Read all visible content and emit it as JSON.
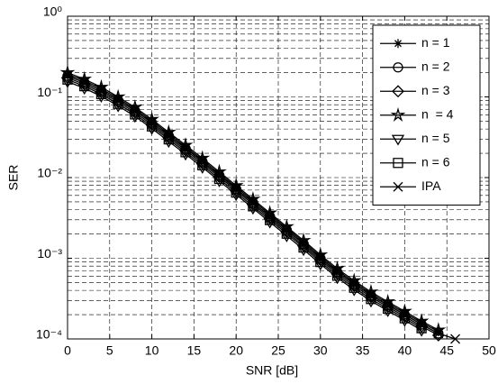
{
  "chart_data": {
    "type": "line",
    "log_y": true,
    "grid": true,
    "minor_grid": true,
    "legend": "upper right",
    "xlabel": "SNR [dB]",
    "ylabel": "SER",
    "x": [
      0,
      2,
      4,
      6,
      8,
      10,
      12,
      14,
      16,
      18,
      20,
      22,
      24,
      26,
      28,
      30,
      32,
      34,
      36,
      38,
      40,
      42,
      44,
      46
    ],
    "xlim": [
      0,
      50
    ],
    "xticks": [
      0,
      5,
      10,
      15,
      20,
      25,
      30,
      35,
      40,
      45,
      50
    ],
    "ylim": [
      0.0001,
      1
    ],
    "yticks": [
      {
        "value": 0.0001,
        "label": "10⁻⁴"
      },
      {
        "value": 0.001,
        "label": "10⁻³"
      },
      {
        "value": 0.01,
        "label": "10⁻²"
      },
      {
        "value": 0.1,
        "label": "10⁻¹"
      },
      {
        "value": 1,
        "label": "10⁰"
      }
    ],
    "series": [
      {
        "name": "n = 1",
        "color": "#000000",
        "marker": "asterisk",
        "values": [
          0.191,
          0.159,
          0.126,
          0.0958,
          0.071,
          0.0503,
          0.0348,
          0.024,
          0.0166,
          0.0112,
          0.0076,
          0.00515,
          0.00348,
          0.00235,
          0.00159,
          0.00105,
          0.00071,
          0.000503,
          0.000364,
          0.000276,
          0.00021,
          0.000159,
          0.000123,
          null
        ]
      },
      {
        "name": "n = 2",
        "color": "#000000",
        "marker": "circle",
        "values": [
          0.182,
          0.151,
          0.12,
          0.0912,
          0.0676,
          0.0479,
          0.0331,
          0.0229,
          0.0158,
          0.0107,
          0.00724,
          0.0049,
          0.00331,
          0.00224,
          0.00151,
          0.001,
          0.000676,
          0.000479,
          0.000347,
          0.000263,
          0.0002,
          0.000151,
          0.000117,
          null
        ]
      },
      {
        "name": "n = 3",
        "color": "#000000",
        "marker": "diamond",
        "values": [
          0.173,
          0.143,
          0.114,
          0.0866,
          0.0642,
          0.0455,
          0.0314,
          0.0218,
          0.015,
          0.0102,
          0.00688,
          0.00466,
          0.00314,
          0.00213,
          0.00143,
          0.00095,
          0.000642,
          0.000455,
          0.00033,
          0.00025,
          0.00019,
          0.000143,
          0.000111,
          null
        ]
      },
      {
        "name": "n  = 4",
        "color": "#000000",
        "marker": "pentagram",
        "values": [
          0.2,
          0.166,
          0.132,
          0.1,
          0.0744,
          0.0527,
          0.0364,
          0.0252,
          0.0174,
          0.0118,
          0.00796,
          0.00539,
          0.00364,
          0.00246,
          0.00166,
          0.0011,
          0.000744,
          0.000527,
          0.000382,
          0.000289,
          0.00022,
          0.000166,
          0.000129,
          null
        ]
      },
      {
        "name": "n = 5",
        "color": "#000000",
        "marker": "triangle-down",
        "values": [
          0.155,
          0.128,
          0.102,
          0.0775,
          0.0575,
          0.0407,
          0.0281,
          0.0195,
          0.0134,
          0.0091,
          0.00615,
          0.00417,
          0.00281,
          0.0019,
          0.00128,
          0.00085,
          0.000575,
          0.000407,
          0.000295,
          0.000224,
          0.00017,
          0.000128,
          null,
          null
        ]
      },
      {
        "name": "n = 6",
        "color": "#000000",
        "marker": "square",
        "values": [
          0.164,
          0.136,
          0.108,
          0.0821,
          0.0608,
          0.0431,
          0.0298,
          0.0206,
          0.0142,
          0.00963,
          0.00652,
          0.00441,
          0.00298,
          0.00202,
          0.00136,
          0.0009,
          0.000608,
          0.000431,
          0.000312,
          0.000237,
          0.00018,
          0.000136,
          null,
          null
        ]
      },
      {
        "name": "IPA",
        "color": "#000000",
        "marker": "x",
        "values": [
          0.182,
          0.151,
          0.12,
          0.0912,
          0.0676,
          0.0479,
          0.0331,
          0.0229,
          0.0158,
          0.0107,
          0.00724,
          0.0049,
          0.00331,
          0.00224,
          0.00151,
          0.001,
          0.000676,
          0.000479,
          0.000347,
          0.000263,
          0.0002,
          0.000151,
          0.000117,
          0.0001
        ]
      }
    ]
  }
}
